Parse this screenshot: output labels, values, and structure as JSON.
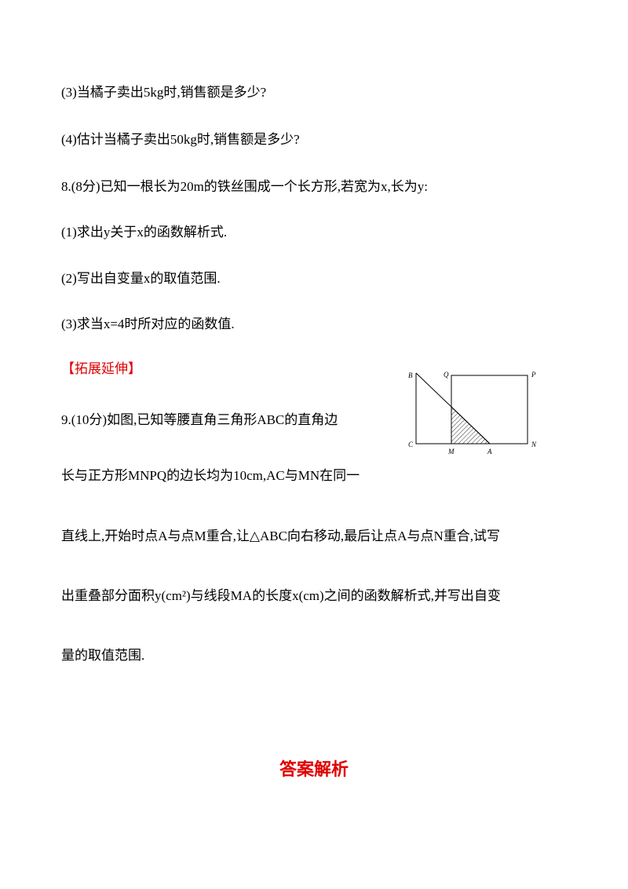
{
  "lines": [
    "(3)当橘子卖出5kg时,销售额是多少?",
    "(4)估计当橘子卖出50kg时,销售额是多少?",
    "8.(8分)已知一根长为20m的铁丝围成一个长方形,若宽为x,长为y:",
    "(1)求出y关于x的函数解析式.",
    "(2)写出自变量x的取值范围.",
    "(3)求当x=4时所对应的函数值.",
    "9.(10分)如图,已知等腰直角三角形ABC的直角边",
    "长与正方形MNPQ的边长均为10cm,AC与MN在同一",
    "直线上,开始时点A与点M重合,让△ABC向右移动,最后让点A与点N重合,试写",
    "出重叠部分面积y(cm²)与线段MA的长度x(cm)之间的函数解析式,并写出自变",
    "量的取值范围."
  ],
  "section_heading": "【拓展延伸】",
  "figure_labels": [
    "B",
    "Q",
    "P",
    "C",
    "M",
    "A",
    "N"
  ],
  "answer_heading": "答案解析"
}
